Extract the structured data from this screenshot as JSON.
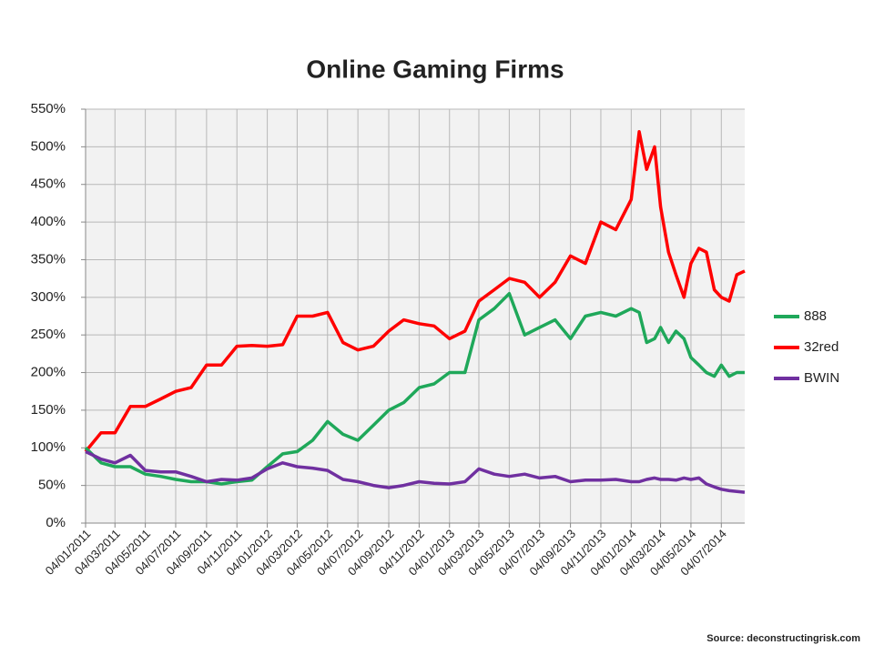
{
  "chart_data": {
    "type": "line",
    "title": "Online Gaming Firms",
    "source": "Source: deconstructingrisk.com",
    "x": [
      "04/01/2011",
      "04/02/2011",
      "04/03/2011",
      "04/04/2011",
      "04/05/2011",
      "04/06/2011",
      "04/07/2011",
      "04/08/2011",
      "04/09/2011",
      "04/10/2011",
      "04/11/2011",
      "04/12/2011",
      "04/01/2012",
      "04/02/2012",
      "04/03/2012",
      "04/04/2012",
      "04/05/2012",
      "04/06/2012",
      "04/07/2012",
      "04/08/2012",
      "04/09/2012",
      "04/10/2012",
      "04/11/2012",
      "04/12/2012",
      "04/01/2013",
      "04/02/2013",
      "04/03/2013",
      "04/04/2013",
      "04/05/2013",
      "04/06/2013",
      "04/07/2013",
      "04/08/2013",
      "04/09/2013",
      "04/10/2013",
      "04/11/2013",
      "04/12/2013",
      "04/01/2014",
      "20/01/2014",
      "04/02/2014",
      "20/02/2014",
      "04/03/2014",
      "20/03/2014",
      "04/04/2014",
      "20/04/2014",
      "04/05/2014",
      "20/05/2014",
      "04/06/2014",
      "20/06/2014",
      "04/07/2014",
      "20/07/2014",
      "04/08/2014",
      "20/08/2014"
    ],
    "series": [
      {
        "name": "888",
        "color": "#1fa85a",
        "values": [
          100,
          80,
          75,
          75,
          65,
          62,
          58,
          55,
          55,
          52,
          55,
          57,
          75,
          92,
          95,
          110,
          135,
          118,
          110,
          130,
          150,
          160,
          180,
          185,
          200,
          200,
          270,
          285,
          305,
          250,
          260,
          270,
          245,
          275,
          280,
          275,
          285,
          280,
          240,
          245,
          260,
          240,
          255,
          245,
          220,
          210,
          200,
          195,
          210,
          195,
          200,
          200
        ]
      },
      {
        "name": "32red",
        "color": "#ff0000",
        "values": [
          95,
          120,
          120,
          155,
          155,
          165,
          175,
          180,
          210,
          210,
          235,
          236,
          235,
          237,
          275,
          275,
          280,
          240,
          230,
          235,
          255,
          270,
          265,
          262,
          245,
          255,
          295,
          310,
          325,
          320,
          300,
          320,
          355,
          345,
          400,
          390,
          430,
          520,
          470,
          500,
          420,
          360,
          330,
          300,
          345,
          365,
          360,
          310,
          300,
          295,
          330,
          335
        ]
      },
      {
        "name": "BWIN",
        "color": "#7030a0",
        "values": [
          95,
          85,
          80,
          90,
          70,
          68,
          68,
          62,
          55,
          58,
          57,
          60,
          72,
          80,
          75,
          73,
          70,
          58,
          55,
          50,
          47,
          50,
          55,
          53,
          52,
          55,
          72,
          65,
          62,
          65,
          60,
          62,
          55,
          57,
          57,
          58,
          55,
          55,
          58,
          60,
          58,
          58,
          57,
          60,
          58,
          60,
          52,
          48,
          45,
          43,
          42,
          41
        ]
      }
    ],
    "xlim": [
      "04/01/2011",
      "20/08/2014"
    ],
    "xticks": [
      "04/01/2011",
      "04/03/2011",
      "04/05/2011",
      "04/07/2011",
      "04/09/2011",
      "04/11/2011",
      "04/01/2012",
      "04/03/2012",
      "04/05/2012",
      "04/07/2012",
      "04/09/2012",
      "04/11/2012",
      "04/01/2013",
      "04/03/2013",
      "04/05/2013",
      "04/07/2013",
      "04/09/2013",
      "04/11/2013",
      "04/01/2014",
      "04/03/2014",
      "04/05/2014",
      "04/07/2014"
    ],
    "ylim": [
      0,
      550
    ],
    "yticks": [
      {
        "value": 0,
        "label": "0%"
      },
      {
        "value": 50,
        "label": "50%"
      },
      {
        "value": 100,
        "label": "100%"
      },
      {
        "value": 150,
        "label": "150%"
      },
      {
        "value": 200,
        "label": "200%"
      },
      {
        "value": 250,
        "label": "250%"
      },
      {
        "value": 300,
        "label": "300%"
      },
      {
        "value": 350,
        "label": "350%"
      },
      {
        "value": 400,
        "label": "400%"
      },
      {
        "value": 450,
        "label": "450%"
      },
      {
        "value": 500,
        "label": "500%"
      },
      {
        "value": 550,
        "label": "550%"
      }
    ],
    "grid": true,
    "legend": "right"
  }
}
